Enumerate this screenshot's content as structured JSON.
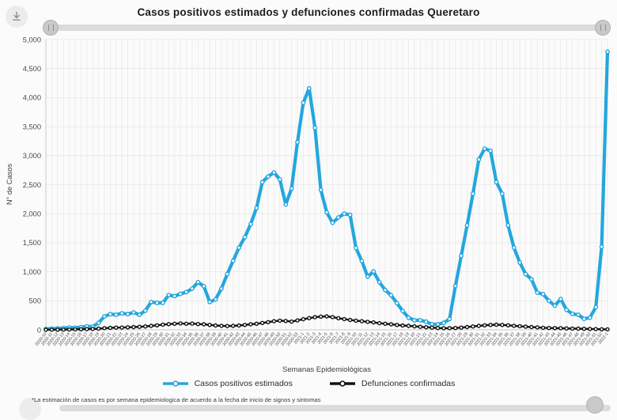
{
  "footnote": {
    "text": "*La estimación de casos es por semana epidemiologica de acuerdo a la fecha de inicio de signos y sintomas"
  },
  "icons": {
    "download": "arrow-down-into-tray"
  },
  "chart_data": {
    "type": "line",
    "title": "Casos positivos estimados y defunciones confirmadas Queretaro",
    "xlabel": "Semanas Epidemiológicas",
    "ylabel": "N° de Casos",
    "ylim": [
      0,
      5000
    ],
    "ytick_step": 500,
    "yticks": [
      "0",
      "500",
      "1,000",
      "1,500",
      "2,000",
      "2,500",
      "3,000",
      "3,500",
      "4,000",
      "4,500",
      "5,000"
    ],
    "grid": true,
    "legend_position": "bottom",
    "colors": {
      "grid": "#e7e7e7",
      "axis": "#c8c8c8",
      "text": "#4a4a4a"
    },
    "categories": [
      "2020-10",
      "2020-11",
      "2020-12",
      "2020-13",
      "2020-14",
      "2020-15",
      "2020-16",
      "2020-17",
      "2020-18",
      "2020-19",
      "2020-20",
      "2020-21",
      "2020-22",
      "2020-23",
      "2020-24",
      "2020-25",
      "2020-26",
      "2020-27",
      "2020-28",
      "2020-29",
      "2020-30",
      "2020-31",
      "2020-32",
      "2020-33",
      "2020-34",
      "2020-35",
      "2020-36",
      "2020-37",
      "2020-38",
      "2020-39",
      "2020-40",
      "2020-41",
      "2020-42",
      "2020-43",
      "2020-44",
      "2020-45",
      "2020-46",
      "2020-47",
      "2020-48",
      "2020-49",
      "2020-50",
      "2020-51",
      "2020-52",
      "2020-53",
      "2021-1",
      "2021-2",
      "2021-3",
      "2021-4",
      "2021-5",
      "2021-6",
      "2021-7",
      "2021-8",
      "2021-9",
      "2021-10",
      "2021-11",
      "2021-12",
      "2021-13",
      "2021-14",
      "2021-15",
      "2021-16",
      "2021-17",
      "2021-18",
      "2021-19",
      "2021-20",
      "2021-21",
      "2021-22",
      "2021-23",
      "2021-24",
      "2021-25",
      "2021-26",
      "2021-27",
      "2021-28",
      "2021-29",
      "2021-30",
      "2021-31",
      "2021-32",
      "2021-33",
      "2021-34",
      "2021-35",
      "2021-36",
      "2021-37",
      "2021-38",
      "2021-39",
      "2021-40",
      "2021-41",
      "2021-42",
      "2021-43",
      "2021-44",
      "2021-45",
      "2021-46",
      "2021-47",
      "2021-48",
      "2021-49",
      "2021-50",
      "2021-51",
      "2021-52",
      "2022-1"
    ],
    "series": [
      {
        "id": "casos-positivos-estimados",
        "name": "Casos positivos estimados",
        "color": "#23a7de",
        "line_width": 4.2,
        "marker_r": 2.2,
        "values": [
          15,
          20,
          25,
          30,
          40,
          35,
          45,
          60,
          55,
          120,
          230,
          270,
          260,
          285,
          270,
          300,
          260,
          330,
          480,
          465,
          465,
          600,
          580,
          620,
          650,
          710,
          820,
          750,
          480,
          525,
          710,
          960,
          1190,
          1415,
          1595,
          1820,
          2100,
          2545,
          2640,
          2710,
          2590,
          2160,
          2435,
          3230,
          3910,
          4160,
          3480,
          2410,
          2025,
          1845,
          1935,
          2000,
          1980,
          1410,
          1185,
          915,
          1005,
          820,
          685,
          595,
          460,
          325,
          210,
          165,
          165,
          140,
          95,
          95,
          120,
          185,
          755,
          1275,
          1800,
          2345,
          2935,
          3120,
          3085,
          2545,
          2345,
          1800,
          1415,
          1160,
          960,
          870,
          640,
          615,
          500,
          415,
          530,
          345,
          275,
          260,
          190,
          210,
          390,
          1430,
          4790
        ]
      },
      {
        "id": "defunciones-confirmadas",
        "name": "Defunciones confirmadas",
        "color": "#111111",
        "line_width": 2.4,
        "marker_r": 2.0,
        "values": [
          2,
          2,
          3,
          4,
          6,
          8,
          10,
          12,
          15,
          20,
          28,
          34,
          38,
          40,
          44,
          48,
          52,
          58,
          68,
          78,
          90,
          98,
          105,
          110,
          105,
          108,
          100,
          95,
          85,
          75,
          70,
          65,
          68,
          75,
          85,
          95,
          105,
          118,
          132,
          148,
          158,
          152,
          142,
          162,
          182,
          202,
          218,
          228,
          232,
          220,
          200,
          185,
          170,
          158,
          148,
          138,
          128,
          115,
          105,
          95,
          85,
          75,
          68,
          60,
          52,
          45,
          38,
          32,
          28,
          28,
          32,
          38,
          48,
          58,
          68,
          78,
          85,
          88,
          85,
          78,
          70,
          62,
          55,
          48,
          42,
          36,
          32,
          30,
          28,
          25,
          22,
          20,
          18,
          15,
          12,
          10,
          8
        ]
      }
    ]
  }
}
